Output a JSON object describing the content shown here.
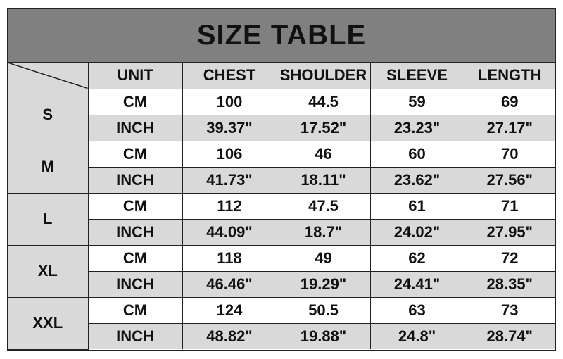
{
  "title": "SIZE TABLE",
  "headers": [
    "UNIT",
    "CHEST",
    "SHOULDER",
    "SLEEVE",
    "LENGTH"
  ],
  "rows": [
    {
      "size": "S",
      "cm": [
        "CM",
        "100",
        "44.5",
        "59",
        "69"
      ],
      "inch": [
        "INCH",
        "39.37\"",
        "17.52\"",
        "23.23\"",
        "27.17\""
      ]
    },
    {
      "size": "M",
      "cm": [
        "CM",
        "106",
        "46",
        "60",
        "70"
      ],
      "inch": [
        "INCH",
        "41.73\"",
        "18.11\"",
        "23.62\"",
        "27.56\""
      ]
    },
    {
      "size": "L",
      "cm": [
        "CM",
        "112",
        "47.5",
        "61",
        "71"
      ],
      "inch": [
        "INCH",
        "44.09\"",
        "18.7\"",
        "24.02\"",
        "27.95\""
      ]
    },
    {
      "size": "XL",
      "cm": [
        "CM",
        "118",
        "49",
        "62",
        "72"
      ],
      "inch": [
        "INCH",
        "46.46\"",
        "19.29\"",
        "24.41\"",
        "28.35\""
      ]
    },
    {
      "size": "XXL",
      "cm": [
        "CM",
        "124",
        "50.5",
        "63",
        "73"
      ],
      "inch": [
        "INCH",
        "48.82\"",
        "19.88\"",
        "24.8\"",
        "28.74\""
      ]
    }
  ]
}
